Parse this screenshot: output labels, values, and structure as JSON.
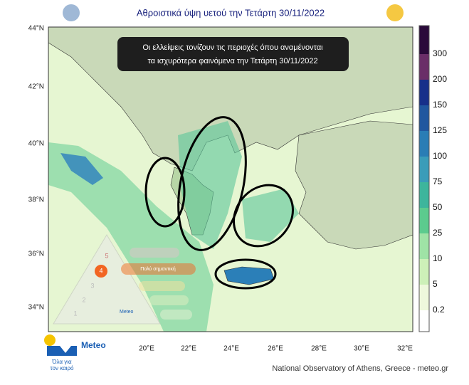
{
  "title": "Αθροιστικά ύψη υετού την Τετάρτη 30/11/2022",
  "annotation": [
    "Οι ελλείψεις τονίζουν τις περιοχές όπου αναμένονται",
    "τα ισχυρότερα φαινόμενα την Τετάρτη 30/11/2022"
  ],
  "lat_labels": [
    "44°N",
    "42°N",
    "40°N",
    "38°N",
    "36°N",
    "34°N"
  ],
  "lon_labels": [
    "20°E",
    "22°E",
    "24°E",
    "26°E",
    "28°E",
    "30°E",
    "32°E"
  ],
  "colorbar": {
    "labels": [
      "300",
      "200",
      "150",
      "125",
      "100",
      "75",
      "50",
      "25",
      "10",
      "5",
      "0.2"
    ]
  },
  "warning": {
    "levels": [
      "1",
      "2",
      "3",
      "4",
      "5"
    ],
    "active_label": "Πολύ σημαντική",
    "brand": "Meteo"
  },
  "logo": {
    "name": "Meteo",
    "tagline": [
      "Όλα για",
      "τον καιρό"
    ]
  },
  "footer": "National Observatory of Athens, Greece - meteo.gr"
}
